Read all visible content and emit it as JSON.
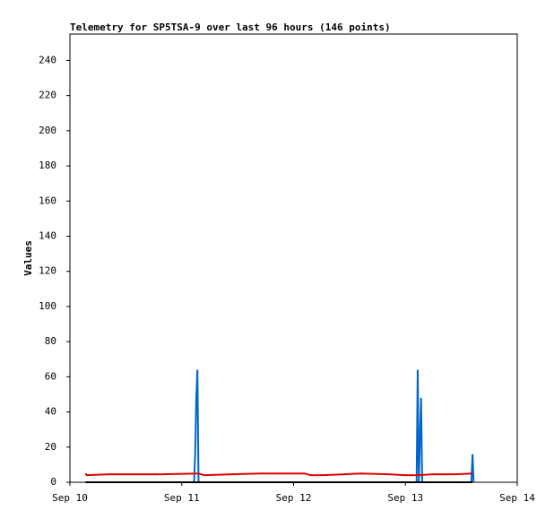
{
  "chart_data": {
    "type": "line",
    "title": "Telemetry for SP5TSA-9 over last 96 hours (146 points)",
    "y_label": "Values",
    "xlim": [
      0,
      4
    ],
    "xticks": [
      {
        "value": 0,
        "label": "Sep 10"
      },
      {
        "value": 1,
        "label": "Sep 11"
      },
      {
        "value": 2,
        "label": "Sep 12"
      },
      {
        "value": 3,
        "label": "Sep 13"
      },
      {
        "value": 4,
        "label": "Sep 14"
      }
    ],
    "ylim": [
      0,
      255
    ],
    "yticks": [
      0,
      20,
      40,
      60,
      80,
      100,
      120,
      140,
      160,
      180,
      200,
      220,
      240
    ],
    "series": [
      {
        "color": "#0066cc",
        "x": [
          0.14,
          1.11,
          1.12,
          1.13,
          1.14,
          1.15,
          3.1,
          3.11,
          3.12,
          3.14,
          3.15,
          3.59,
          3.6,
          3.61
        ],
        "values": [
          0,
          0,
          16,
          48,
          64,
          0,
          0,
          64,
          0,
          48,
          0,
          0,
          16,
          0
        ]
      },
      {
        "color": "#dd0000",
        "x": [
          0.14,
          0.15,
          0.35,
          0.82,
          1.15,
          1.2,
          1.45,
          1.7,
          2.1,
          2.15,
          2.25,
          2.45,
          2.6,
          2.85,
          3.0,
          3.1,
          3.25,
          3.45,
          3.6
        ],
        "values": [
          5,
          4,
          4.5,
          4.5,
          5,
          4,
          4.5,
          5,
          5,
          4,
          4,
          4.5,
          5,
          4.5,
          4,
          4,
          4.5,
          4.5,
          5
        ]
      },
      {
        "color": "#000000",
        "x": [
          0.14,
          3.6
        ],
        "values": [
          0,
          0
        ]
      }
    ]
  }
}
